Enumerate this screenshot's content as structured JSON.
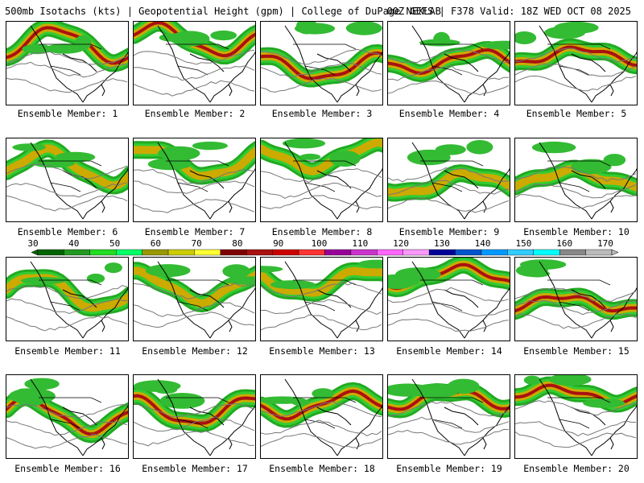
{
  "header": {
    "title": "500mb Isotachs (kts) | Geopotential Height (gpm) | College of DuPage NEXLAB",
    "run_info": "00Z GEFS | F378 Valid: 18Z WED OCT 08 2025"
  },
  "caption_prefix": "Ensemble Member: ",
  "members": [
    {
      "label": "Ensemble Member: 1"
    },
    {
      "label": "Ensemble Member: 2"
    },
    {
      "label": "Ensemble Member: 3"
    },
    {
      "label": "Ensemble Member: 4"
    },
    {
      "label": "Ensemble Member: 5"
    },
    {
      "label": "Ensemble Member: 6"
    },
    {
      "label": "Ensemble Member: 7"
    },
    {
      "label": "Ensemble Member: 8"
    },
    {
      "label": "Ensemble Member: 9"
    },
    {
      "label": "Ensemble Member: 10"
    },
    {
      "label": "Ensemble Member: 11"
    },
    {
      "label": "Ensemble Member: 12"
    },
    {
      "label": "Ensemble Member: 13"
    },
    {
      "label": "Ensemble Member: 14"
    },
    {
      "label": "Ensemble Member: 15"
    },
    {
      "label": "Ensemble Member: 16"
    },
    {
      "label": "Ensemble Member: 17"
    },
    {
      "label": "Ensemble Member: 18"
    },
    {
      "label": "Ensemble Member: 19"
    },
    {
      "label": "Ensemble Member: 20"
    }
  ],
  "colorbar": {
    "tick_labels": [
      "30",
      "40",
      "50",
      "60",
      "70",
      "80",
      "90",
      "100",
      "110",
      "120",
      "130",
      "140",
      "150",
      "160",
      "170"
    ],
    "colors": [
      "#006400",
      "#229922",
      "#22dd22",
      "#00ff66",
      "#999900",
      "#cccc00",
      "#ffff33",
      "#7f0000",
      "#aa1111",
      "#cc0000",
      "#ff3333",
      "#990099",
      "#cc33cc",
      "#ff66ff",
      "#ff99ff",
      "#000099",
      "#0055cc",
      "#0099ff",
      "#33ccff",
      "#00ffff",
      "#888888",
      "#bbbbbb"
    ]
  }
}
